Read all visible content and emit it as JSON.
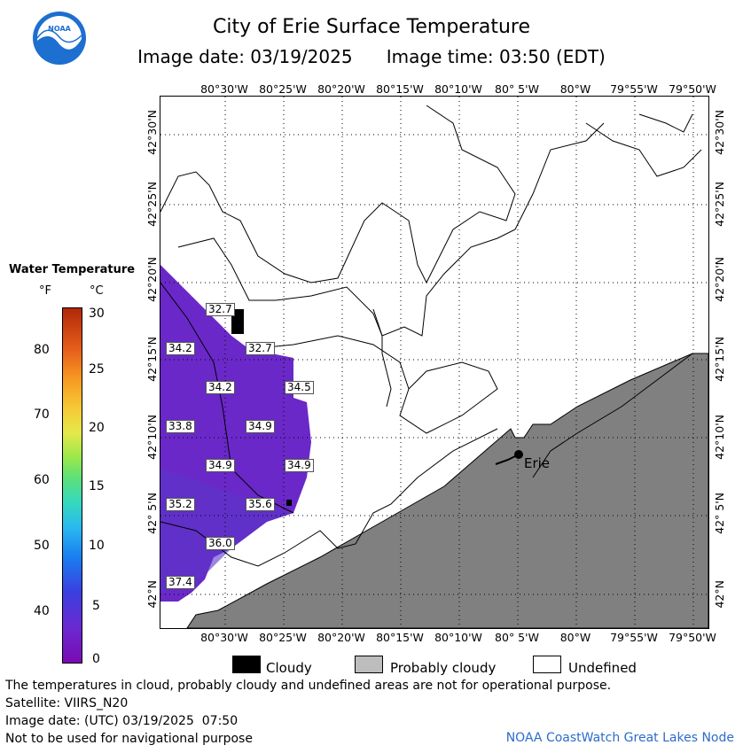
{
  "title": "City of Erie Surface Temperature",
  "subtitle": {
    "date": "Image date: 03/19/2025",
    "time": "Image time: 03:50 (EDT)"
  },
  "logo_text": "NOAA",
  "lon_labels": [
    "80°30'W",
    "80°25'W",
    "80°20'W",
    "80°15'W",
    "80°10'W",
    "80° 5'W",
    "80°W",
    "79°55'W",
    "79°50'W"
  ],
  "lat_labels": [
    "42°30'N",
    "42°25'N",
    "42°20'N",
    "42°15'N",
    "42°10'N",
    "42° 5'N",
    "42°N"
  ],
  "legend": {
    "title": "Water Temperature",
    "unit_f": "°F",
    "unit_c": "°C",
    "f_ticks": [
      "80",
      "70",
      "60",
      "50",
      "40"
    ],
    "c_ticks": [
      "30",
      "25",
      "20",
      "15",
      "10",
      "5",
      "0"
    ]
  },
  "temperature_labels": [
    "32.7",
    "34.2",
    "32.7",
    "34.2",
    "34.5",
    "33.8",
    "34.9",
    "34.9",
    "34.9",
    "35.2",
    "35.6",
    "36.0",
    "37.4"
  ],
  "city_label": "Erie",
  "map_legend": {
    "cloudy": "Cloudy",
    "probably_cloudy": "Probably cloudy",
    "undefined": "Undefined"
  },
  "footer": {
    "disclaimer": "The temperatures in cloud, probably cloudy and undefined areas are not for operational purpose.",
    "satellite": "Satellite: VIIRS_N20",
    "utc_date": "Image date: (UTC) 03/19/2025  07:50",
    "nav": "Not to be used for navigational purpose",
    "node": "NOAA CoastWatch Great Lakes Node"
  },
  "colors": {
    "water": "#6a28c8",
    "land": "#808080",
    "cloud": "#000000",
    "link": "#2c6ccb"
  }
}
